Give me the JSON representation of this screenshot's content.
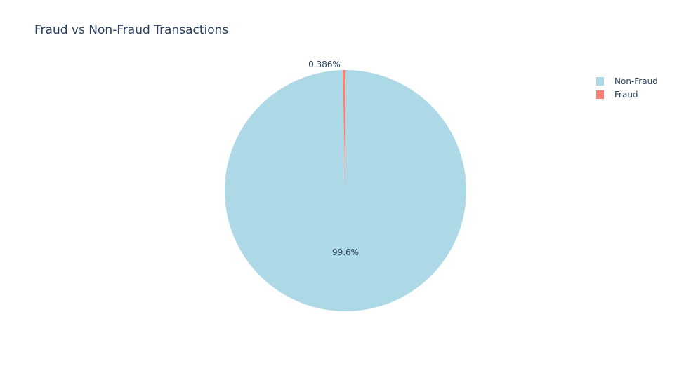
{
  "chart_data": {
    "type": "pie",
    "title": "Fraud vs Non-Fraud Transactions",
    "labels": [
      "Non-Fraud",
      "Fraud"
    ],
    "values": [
      99.614,
      0.386
    ],
    "percent_labels": [
      "99.6%",
      "0.386%"
    ],
    "colors": [
      "#add8e6",
      "#fa8072"
    ],
    "legend_position": "top-right",
    "direction": "clockwise",
    "start": "top"
  }
}
